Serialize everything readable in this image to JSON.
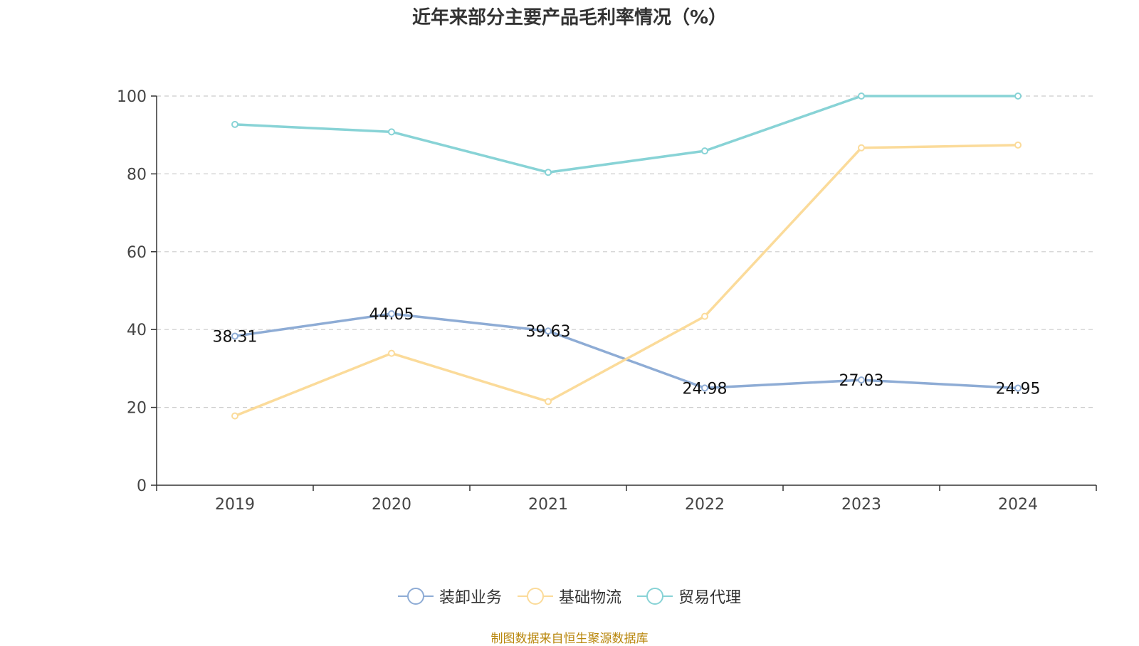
{
  "chart_data": {
    "type": "line",
    "title": "近年来部分主要产品毛利率情况（%）",
    "categories": [
      "2019",
      "2020",
      "2021",
      "2022",
      "2023",
      "2024"
    ],
    "ylim": [
      0,
      100
    ],
    "yticks": [
      "0",
      "20",
      "40",
      "60",
      "80",
      "100"
    ],
    "grid": true,
    "legend_position": "bottom",
    "series": [
      {
        "name": "装卸业务",
        "color": "#8eacd5",
        "values": [
          38.31,
          44.05,
          39.63,
          24.98,
          27.03,
          24.95
        ],
        "labels": [
          "38.31",
          "44.05",
          "39.63",
          "24.98",
          "27.03",
          "24.95"
        ]
      },
      {
        "name": "基础物流",
        "color": "#fbdb9a",
        "values": [
          17.8,
          33.9,
          21.5,
          43.4,
          86.7,
          87.4
        ]
      },
      {
        "name": "贸易代理",
        "color": "#88d3d6",
        "values": [
          92.7,
          90.8,
          80.4,
          85.9,
          100,
          100
        ]
      }
    ]
  },
  "source": "制图数据来自恒生聚源数据库"
}
